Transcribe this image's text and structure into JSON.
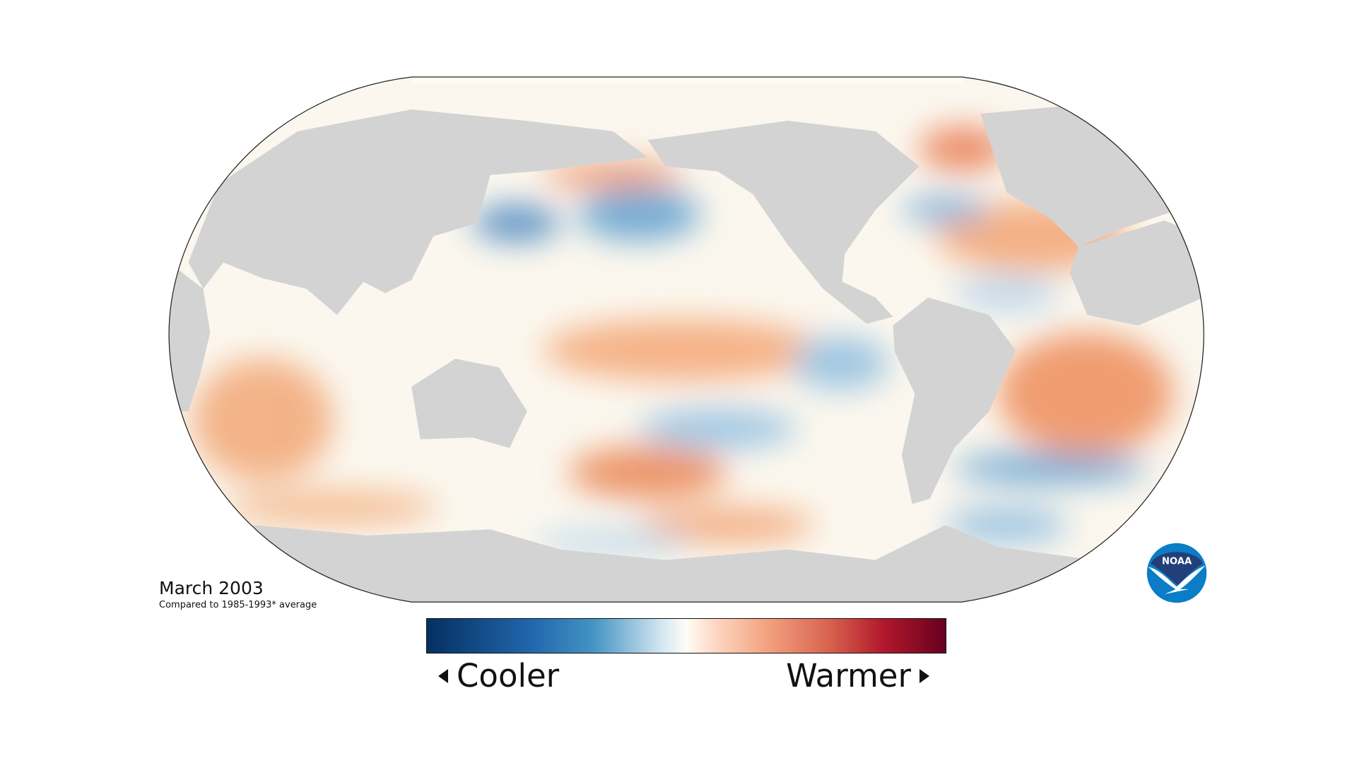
{
  "title": "March 2003",
  "subtitle": "Compared to 1985-1993* average",
  "legend": {
    "low_label": "Cooler",
    "high_label": "Warmer",
    "colors": [
      "#053061",
      "#2166ac",
      "#4393c3",
      "#d1e5f0",
      "#fdfdf7",
      "#fddbc7",
      "#f4a582",
      "#d6604d",
      "#b2182b",
      "#67001f"
    ]
  },
  "logo": {
    "text": "NOAA",
    "dark": "#233f7a",
    "light": "#0a7dc6"
  },
  "map": {
    "projection": "Robinson",
    "land_color": "#d3d3d3"
  }
}
